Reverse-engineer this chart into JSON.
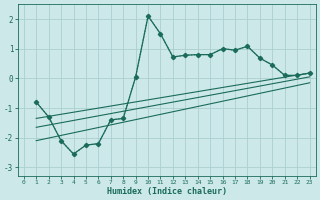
{
  "xlabel": "Humidex (Indice chaleur)",
  "background_color": "#cce8e8",
  "grid_color": "#aacfcf",
  "line_color": "#1a6b5a",
  "xlim": [
    -0.5,
    23.5
  ],
  "ylim": [
    -3.3,
    2.5
  ],
  "xticks": [
    0,
    1,
    2,
    3,
    4,
    5,
    6,
    7,
    8,
    9,
    10,
    11,
    12,
    13,
    14,
    15,
    16,
    17,
    18,
    19,
    20,
    21,
    22,
    23
  ],
  "yticks": [
    -3,
    -2,
    -1,
    0,
    1,
    2
  ],
  "curve1_x": [
    1,
    2,
    3,
    4,
    5,
    6,
    7,
    8,
    9,
    10,
    11,
    12,
    13,
    14,
    15,
    16,
    17,
    18,
    19,
    20,
    21,
    22,
    23
  ],
  "curve1_y": [
    -0.8,
    -1.3,
    -2.1,
    -2.55,
    -2.25,
    -2.2,
    -1.4,
    -1.35,
    0.05,
    2.1,
    1.5,
    0.72,
    0.78,
    0.8,
    0.8,
    1.0,
    0.95,
    1.08,
    0.68,
    0.45,
    0.1,
    0.1,
    0.18
  ],
  "curve2_x": [
    1,
    2,
    3,
    4,
    5,
    6,
    7,
    8,
    9,
    10,
    11,
    12,
    13,
    14,
    15,
    16,
    17,
    18,
    19,
    20,
    21,
    22,
    23
  ],
  "curve2_y": [
    -0.8,
    -1.3,
    -2.1,
    -2.55,
    -2.25,
    -2.2,
    -1.4,
    -1.35,
    0.05,
    2.1,
    1.5,
    0.72,
    0.78,
    0.8,
    0.8,
    1.0,
    0.95,
    1.08,
    0.68,
    0.45,
    0.1,
    0.1,
    0.18
  ],
  "line1_x": [
    1,
    23
  ],
  "line1_y": [
    -1.35,
    0.18
  ],
  "line2_x": [
    1,
    23
  ],
  "line2_y": [
    -1.65,
    0.05
  ],
  "line3_x": [
    1,
    23
  ],
  "line3_y": [
    -2.1,
    -0.15
  ]
}
